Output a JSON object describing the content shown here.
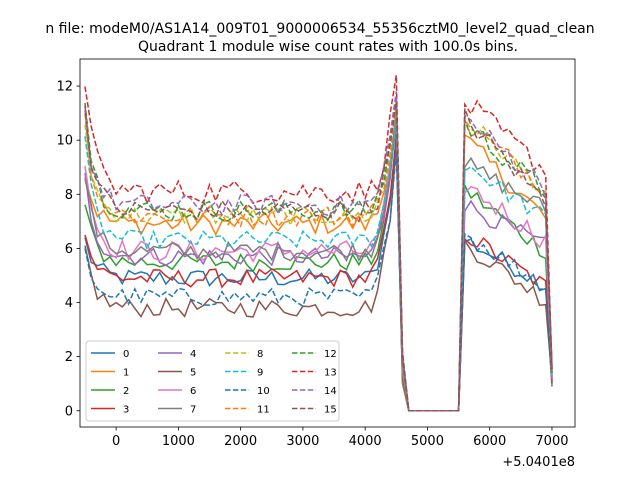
{
  "chart_data": {
    "type": "line",
    "suptitle": "n file: modeM0/AS1A14_009T01_9000006534_55356cztM0_level2_quad_clean",
    "title": "Quadrant 1 module wise count rates with 100.0s bins.",
    "xlabel": "",
    "ylabel": "",
    "x_offset_label": "+5.0401e8",
    "xlim": [
      -580,
      7370
    ],
    "ylim": [
      -0.6,
      13.0
    ],
    "xticks": [
      0,
      1000,
      2000,
      3000,
      4000,
      5000,
      6000,
      7000
    ],
    "xtick_labels": [
      "0",
      "1000",
      "2000",
      "3000",
      "4000",
      "5000",
      "6000",
      "7000"
    ],
    "yticks": [
      0,
      2,
      4,
      6,
      8,
      10,
      12
    ],
    "ytick_labels": [
      "0",
      "2",
      "4",
      "6",
      "8",
      "10",
      "12"
    ],
    "bin_size_s": 100,
    "x_start": -500,
    "x_end": 7000,
    "gap_start": 4700,
    "gap_end": 5550,
    "legend_position": "lower-left",
    "legend_columns": 4,
    "series": [
      {
        "name": "0",
        "color": "#1f77b4",
        "dash": "solid",
        "start": 6.3,
        "base": 4.9,
        "peak": 10.2,
        "p2start": 6.2,
        "p2end": 4.6,
        "amp": 0.35
      },
      {
        "name": "1",
        "color": "#ff7f0e",
        "dash": "solid",
        "start": 8.8,
        "base": 6.9,
        "peak": 11.0,
        "p2start": 9.8,
        "p2end": 7.0,
        "amp": 0.4
      },
      {
        "name": "2",
        "color": "#2ca02c",
        "dash": "solid",
        "start": 7.5,
        "base": 5.5,
        "peak": 10.6,
        "p2start": 8.0,
        "p2end": 5.8,
        "amp": 0.35
      },
      {
        "name": "3",
        "color": "#d62728",
        "dash": "solid",
        "start": 6.5,
        "base": 4.9,
        "peak": 10.0,
        "p2start": 6.4,
        "p2end": 4.5,
        "amp": 0.35
      },
      {
        "name": "4",
        "color": "#9467bd",
        "dash": "solid",
        "start": 8.6,
        "base": 5.7,
        "peak": 10.9,
        "p2start": 7.5,
        "p2end": 6.0,
        "amp": 0.35
      },
      {
        "name": "5",
        "color": "#8c564b",
        "dash": "solid",
        "start": 6.0,
        "base": 3.8,
        "peak": 9.8,
        "p2start": 6.0,
        "p2end": 4.0,
        "amp": 0.35
      },
      {
        "name": "6",
        "color": "#e377c2",
        "dash": "solid",
        "start": 9.2,
        "base": 5.9,
        "peak": 10.8,
        "p2start": 8.2,
        "p2end": 6.2,
        "amp": 0.4
      },
      {
        "name": "7",
        "color": "#7f7f7f",
        "dash": "solid",
        "start": 8.7,
        "base": 5.9,
        "peak": 11.2,
        "p2start": 9.0,
        "p2end": 7.4,
        "amp": 0.35
      },
      {
        "name": "8",
        "color": "#bcbd22",
        "dash": "dashed",
        "start": 10.5,
        "base": 7.2,
        "peak": 11.3,
        "p2start": 10.6,
        "p2end": 8.0,
        "amp": 0.35
      },
      {
        "name": "9",
        "color": "#17becf",
        "dash": "dashed",
        "start": 9.8,
        "base": 6.3,
        "peak": 10.7,
        "p2start": 9.0,
        "p2end": 7.0,
        "amp": 0.35
      },
      {
        "name": "10",
        "color": "#1f77b4",
        "dash": "dashed",
        "start": 5.8,
        "base": 4.2,
        "peak": 9.6,
        "p2start": 6.4,
        "p2end": 4.5,
        "amp": 0.35
      },
      {
        "name": "11",
        "color": "#ff7f0e",
        "dash": "dashed",
        "start": 10.8,
        "base": 7.2,
        "peak": 11.5,
        "p2start": 10.4,
        "p2end": 8.2,
        "amp": 0.4
      },
      {
        "name": "12",
        "color": "#2ca02c",
        "dash": "dashed",
        "start": 11.4,
        "base": 7.4,
        "peak": 11.6,
        "p2start": 10.4,
        "p2end": 8.0,
        "amp": 0.4
      },
      {
        "name": "13",
        "color": "#d62728",
        "dash": "dashed",
        "start": 12.3,
        "base": 8.1,
        "peak": 12.4,
        "p2start": 11.2,
        "p2end": 8.8,
        "amp": 0.45
      },
      {
        "name": "14",
        "color": "#9467bd",
        "dash": "dashed",
        "start": 11.0,
        "base": 7.6,
        "peak": 11.8,
        "p2start": 10.6,
        "p2end": 8.2,
        "amp": 0.4
      },
      {
        "name": "15",
        "color": "#8c564b",
        "dash": "dashed",
        "start": 11.2,
        "base": 7.4,
        "peak": 11.4,
        "p2start": 10.6,
        "p2end": 7.6,
        "amp": 0.4
      }
    ]
  }
}
